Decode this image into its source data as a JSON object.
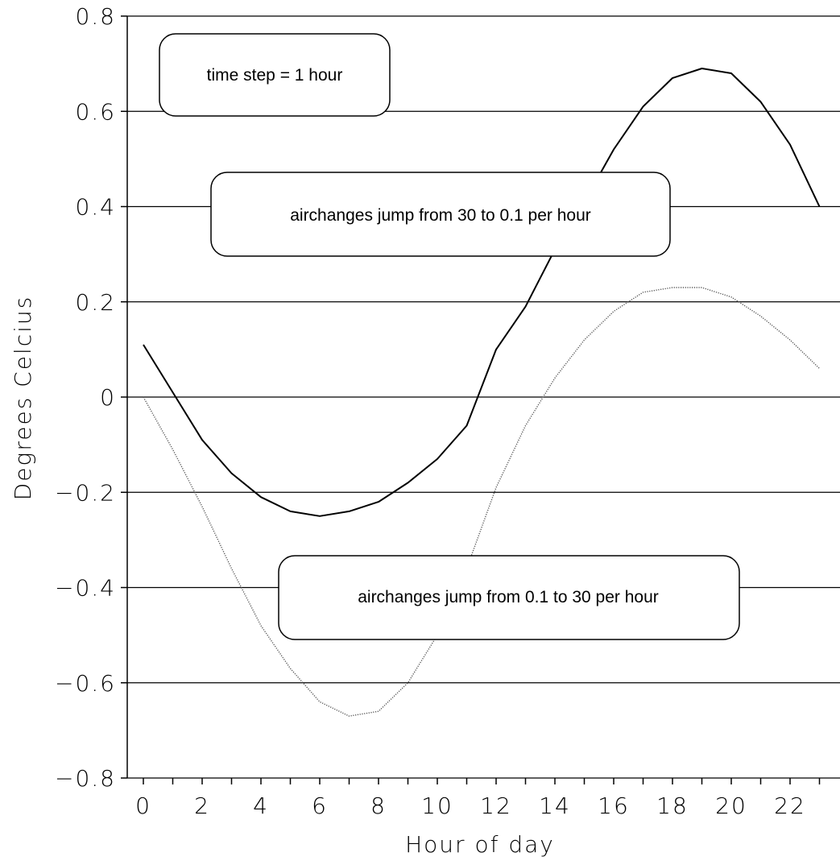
{
  "chart_data": {
    "type": "line",
    "xlabel": "Hour of day",
    "ylabel": "Degrees Celcius",
    "xlim": [
      -0.5,
      23.2
    ],
    "ylim": [
      -0.8,
      0.8
    ],
    "x_ticks": [
      0,
      2,
      4,
      6,
      8,
      10,
      12,
      14,
      16,
      18,
      20,
      22
    ],
    "x_tick_labels": [
      "0",
      "2",
      "4",
      "6",
      "8",
      "10",
      "12",
      "14",
      "16",
      "18",
      "20",
      "22"
    ],
    "y_ticks": [
      -0.8,
      -0.6,
      -0.4,
      -0.2,
      0,
      0.2,
      0.4,
      0.6,
      0.8
    ],
    "y_tick_labels": [
      "−0.8",
      "−0.6",
      "−0.4",
      "−0.2",
      "0",
      "0.2",
      "0.4",
      "0.6",
      "0.8"
    ],
    "grid": "horizontal",
    "series": [
      {
        "style": "solid",
        "color": "#000000",
        "x": [
          0,
          1,
          2,
          3,
          4,
          5,
          6,
          7,
          8,
          9,
          10,
          11,
          12,
          13,
          14,
          15,
          16,
          17,
          18,
          19,
          20,
          21,
          22,
          23
        ],
        "values": [
          0.11,
          0.01,
          -0.09,
          -0.16,
          -0.21,
          -0.24,
          -0.25,
          -0.24,
          -0.22,
          -0.18,
          -0.13,
          -0.06,
          0.1,
          0.19,
          0.31,
          0.41,
          0.52,
          0.61,
          0.67,
          0.69,
          0.68,
          0.62,
          0.53,
          0.4
        ]
      },
      {
        "style": "dotted",
        "color": "#555555",
        "x": [
          0,
          1,
          2,
          3,
          4,
          5,
          6,
          7,
          8,
          9,
          10,
          11,
          12,
          13,
          14,
          15,
          16,
          17,
          18,
          19,
          20,
          21,
          22,
          23
        ],
        "values": [
          0.0,
          -0.11,
          -0.23,
          -0.36,
          -0.48,
          -0.57,
          -0.64,
          -0.67,
          -0.66,
          -0.6,
          -0.5,
          -0.36,
          -0.19,
          -0.06,
          0.04,
          0.12,
          0.18,
          0.22,
          0.23,
          0.23,
          0.21,
          0.17,
          0.12,
          0.06
        ]
      }
    ],
    "annotations": [
      "time step = 1 hour",
      "airchanges jump from 30 to 0.1 per hour",
      "airchanges jump from 0.1 to 30 per hour"
    ]
  }
}
